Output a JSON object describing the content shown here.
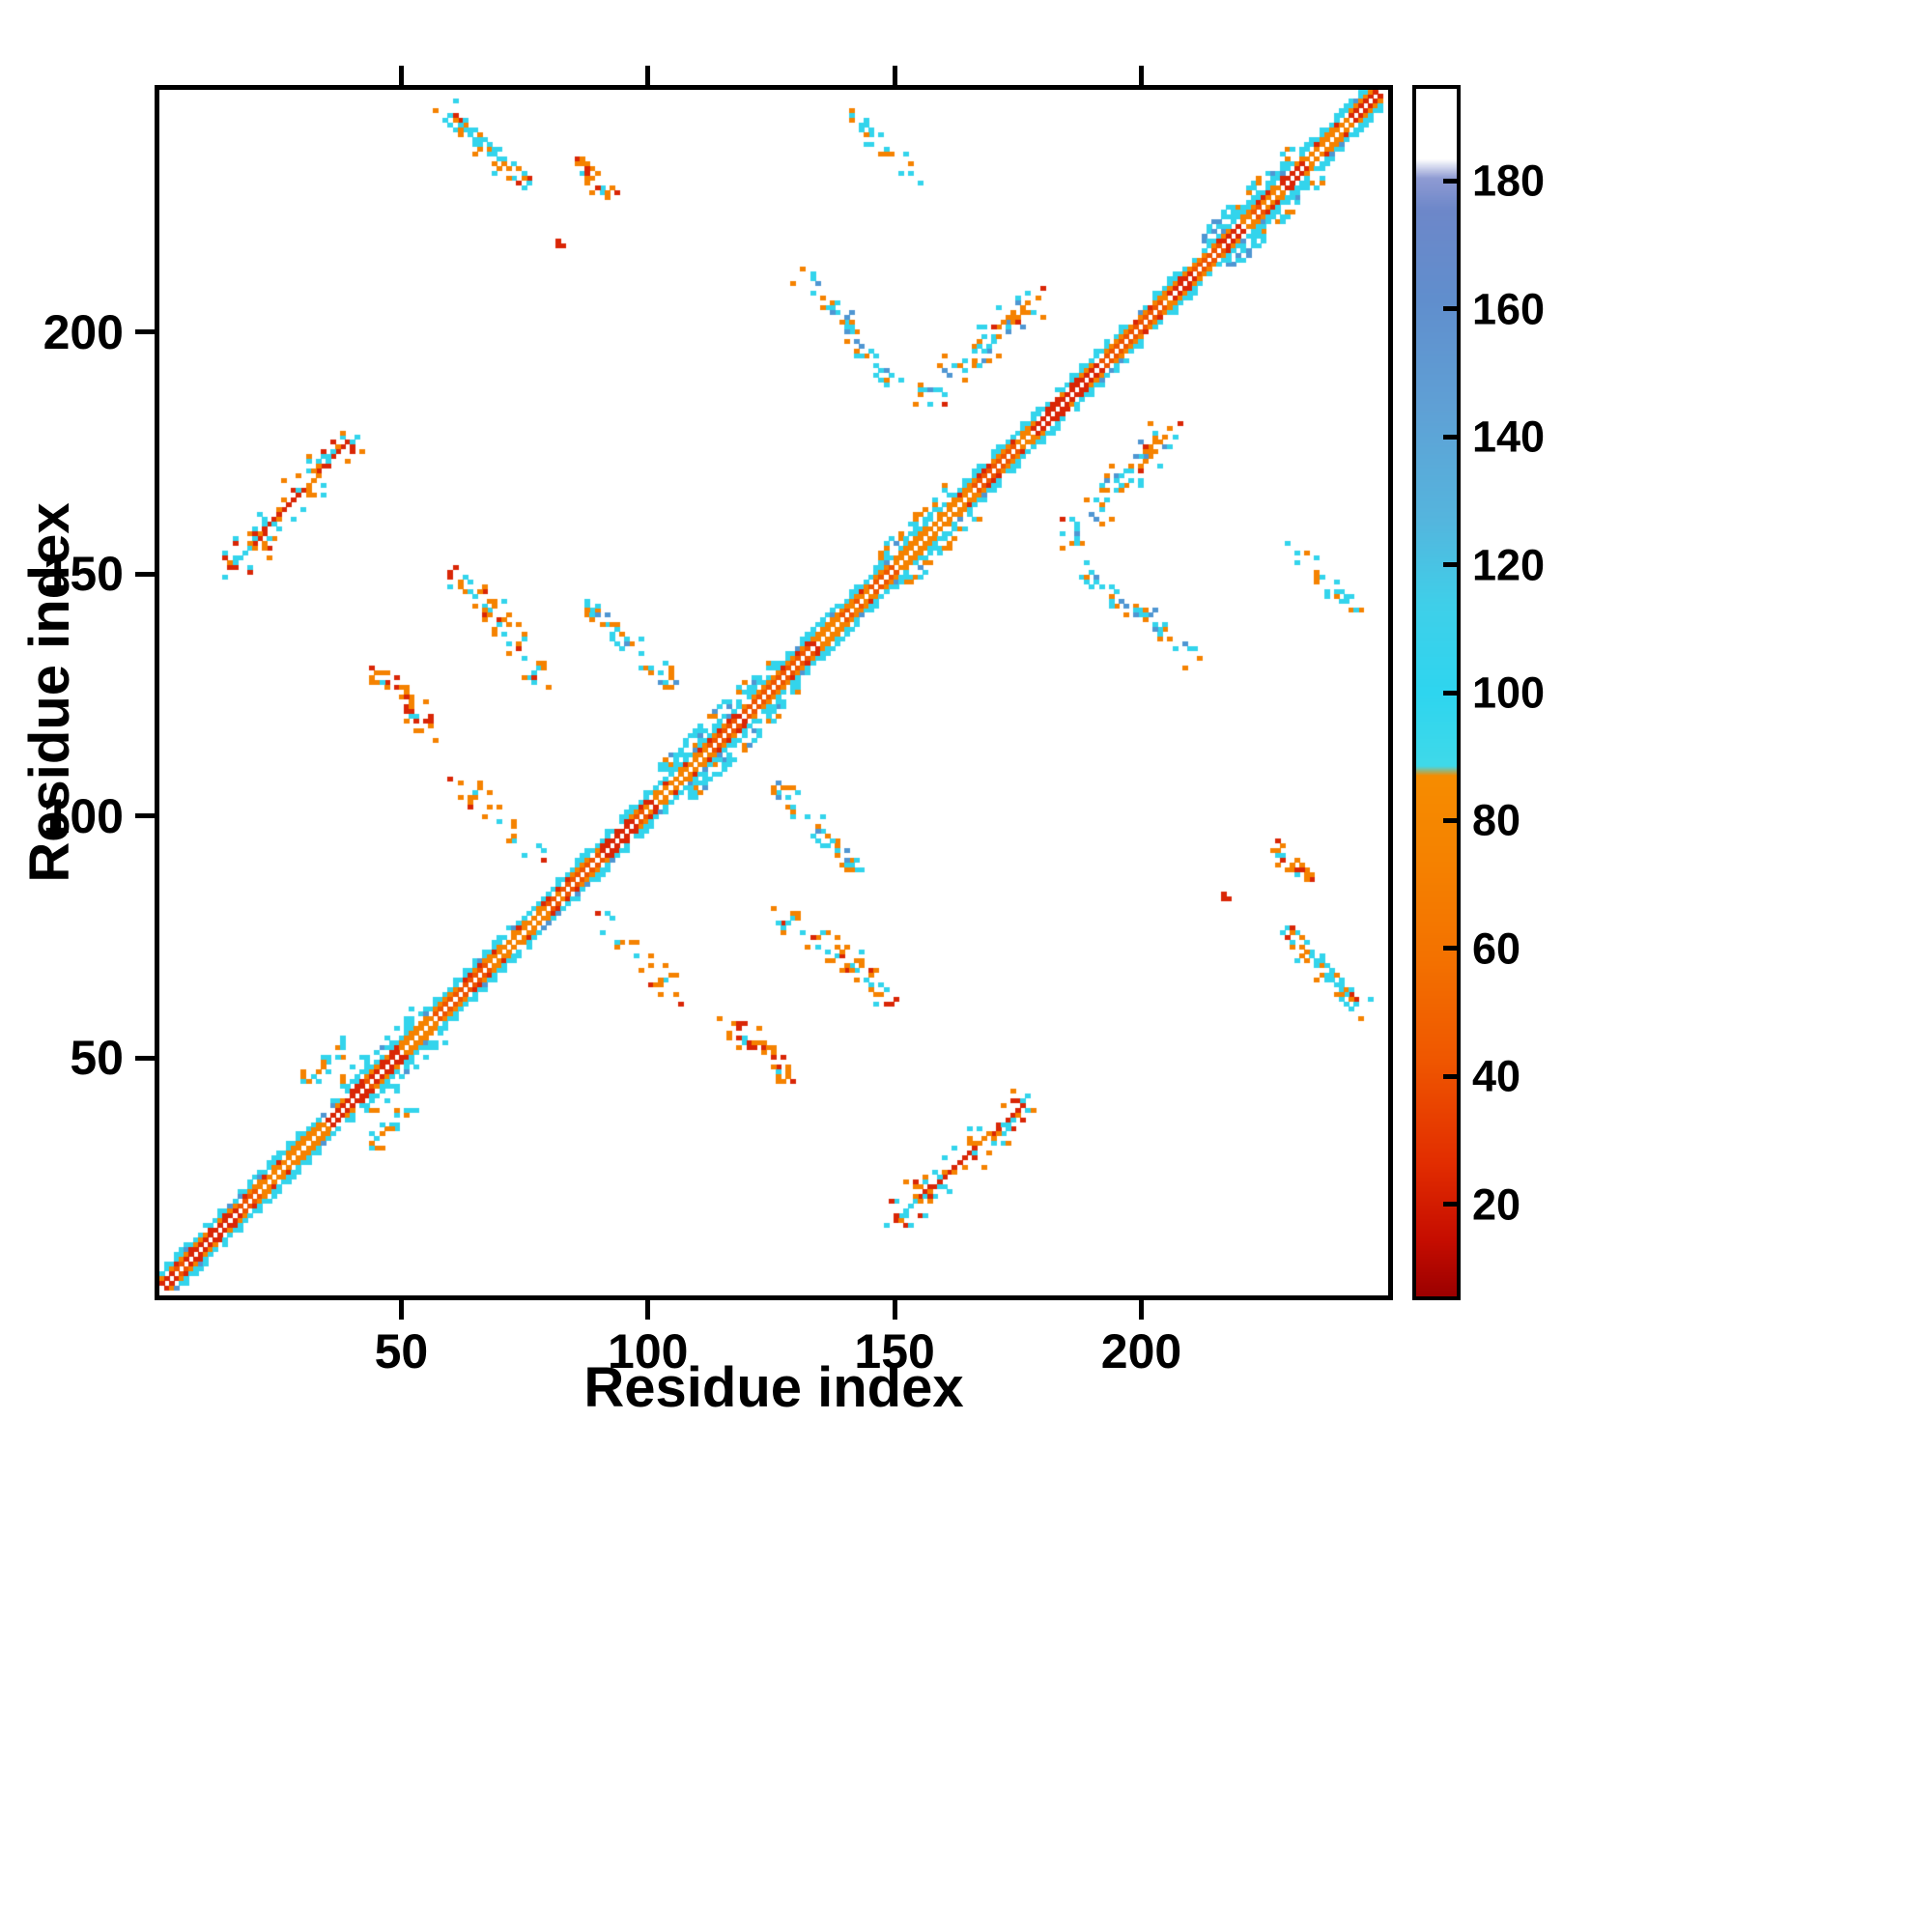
{
  "chart_data": {
    "type": "heatmap",
    "subtype": "protein-contact-map",
    "title": "",
    "xlabel": "Residue index",
    "ylabel": "Residue index",
    "x_range": [
      1,
      250
    ],
    "y_range": [
      1,
      250
    ],
    "x_ticks": [
      50,
      100,
      150,
      200
    ],
    "y_ticks": [
      50,
      100,
      150,
      200
    ],
    "grid": false,
    "background": "#ffffff",
    "symmetric": true,
    "palette": {
      "red": "#d92606",
      "deep_orange": "#ee5500",
      "orange": "#f58200",
      "cyan": "#33d4ec",
      "blue": "#4f96d2",
      "white": "#ffffff"
    },
    "colorbar": {
      "range": [
        5,
        195
      ],
      "ticks": [
        20,
        40,
        60,
        80,
        100,
        120,
        140,
        160,
        180
      ],
      "stops": [
        [
          5,
          "#9b0000"
        ],
        [
          14,
          "#c60d00"
        ],
        [
          26,
          "#e22d00"
        ],
        [
          42,
          "#ef5600"
        ],
        [
          58,
          "#f37100"
        ],
        [
          74,
          "#f58200"
        ],
        [
          87,
          "#f68c00"
        ],
        [
          88.5,
          "#3fd9e9"
        ],
        [
          100,
          "#2ed5ef"
        ],
        [
          114,
          "#3fcfe9"
        ],
        [
          128,
          "#55b4dd"
        ],
        [
          145,
          "#5fa0d5"
        ],
        [
          162,
          "#608ecd"
        ],
        [
          176,
          "#6d87c9"
        ],
        [
          181,
          "#8f9bd3"
        ],
        [
          184,
          "#ffffff"
        ],
        [
          195,
          "#ffffff"
        ]
      ]
    },
    "diagonal": {
      "inner_colors": [
        "red",
        "deep_orange",
        "orange"
      ],
      "flank_color": "cyan",
      "flank_accent": "blue",
      "bulges": [
        [
          38,
          52
        ],
        [
          103,
          126
        ],
        [
          148,
          161
        ],
        [
          214,
          233
        ]
      ]
    },
    "features": [
      {
        "name": "hairpin-60-240",
        "x": [
          58,
          76
        ],
        "y": [
          247,
          230
        ],
        "spread": 2.2,
        "count": 64,
        "mix": {
          "cyan": 0.58,
          "orange": 0.3,
          "red": 0.08,
          "blue": 0.04
        },
        "style": "scatter"
      },
      {
        "name": "blob-90-232",
        "x": [
          86,
          94
        ],
        "y": [
          236,
          227
        ],
        "spread": 1.8,
        "count": 26,
        "mix": {
          "orange": 0.55,
          "red": 0.35,
          "cyan": 0.1
        },
        "style": "scatter"
      },
      {
        "name": "dot-82-218",
        "x": [
          82,
          83
        ],
        "y": [
          219,
          218
        ],
        "spread": 0.4,
        "count": 3,
        "mix": {
          "red": 1.0
        },
        "style": "scatter"
      },
      {
        "name": "arc-140-200",
        "x": [
          131,
          151
        ],
        "y": [
          212,
          190
        ],
        "spread": 2.2,
        "count": 50,
        "mix": {
          "cyan": 0.6,
          "orange": 0.3,
          "blue": 0.1
        },
        "style": "scatter"
      },
      {
        "name": "cluster-168-198",
        "x": [
          157,
          180
        ],
        "y": [
          186,
          207
        ],
        "spread": 2.8,
        "count": 72,
        "mix": {
          "cyan": 0.48,
          "orange": 0.36,
          "blue": 0.08,
          "red": 0.08
        },
        "style": "scatter"
      },
      {
        "name": "helix-line-27-163",
        "x": [
          15,
          39
        ],
        "y": [
          151,
          177
        ],
        "spread": 0,
        "count": 0,
        "mix": {
          "red": 1.0
        },
        "style": "line"
      },
      {
        "name": "helix-halo-27-163",
        "x": [
          15,
          39
        ],
        "y": [
          151,
          177
        ],
        "spread": 3.2,
        "count": 80,
        "mix": {
          "cyan": 0.42,
          "orange": 0.34,
          "red": 0.24
        },
        "style": "scatter"
      },
      {
        "name": "cluster-70-140",
        "x": [
          62,
          79
        ],
        "y": [
          150,
          128
        ],
        "spread": 2.6,
        "count": 56,
        "mix": {
          "orange": 0.42,
          "cyan": 0.34,
          "red": 0.24
        },
        "style": "scatter"
      },
      {
        "name": "streak-96-134",
        "x": [
          88,
          106
        ],
        "y": [
          143,
          127
        ],
        "spread": 1.8,
        "count": 48,
        "mix": {
          "cyan": 0.46,
          "blue": 0.16,
          "orange": 0.38
        },
        "style": "scatter"
      },
      {
        "name": "blob-50-123",
        "x": [
          45,
          57
        ],
        "y": [
          129,
          116
        ],
        "spread": 2.4,
        "count": 42,
        "mix": {
          "orange": 0.55,
          "red": 0.3,
          "cyan": 0.15
        },
        "style": "scatter"
      },
      {
        "name": "cluster-35-47",
        "x": [
          31,
          39
        ],
        "y": [
          44,
          53
        ],
        "spread": 1.8,
        "count": 26,
        "mix": {
          "cyan": 0.5,
          "orange": 0.4,
          "red": 0.1
        },
        "style": "scatter"
      },
      {
        "name": "sparse-70-97",
        "x": [
          62,
          79
        ],
        "y": [
          106,
          90
        ],
        "spread": 2.8,
        "count": 30,
        "mix": {
          "orange": 0.5,
          "cyan": 0.4,
          "red": 0.1
        },
        "style": "scatter"
      },
      {
        "name": "sparse-148-238",
        "x": [
          141,
          156
        ],
        "y": [
          246,
          231
        ],
        "spread": 2.0,
        "count": 26,
        "mix": {
          "cyan": 0.72,
          "orange": 0.28
        },
        "style": "scatter"
      }
    ]
  }
}
